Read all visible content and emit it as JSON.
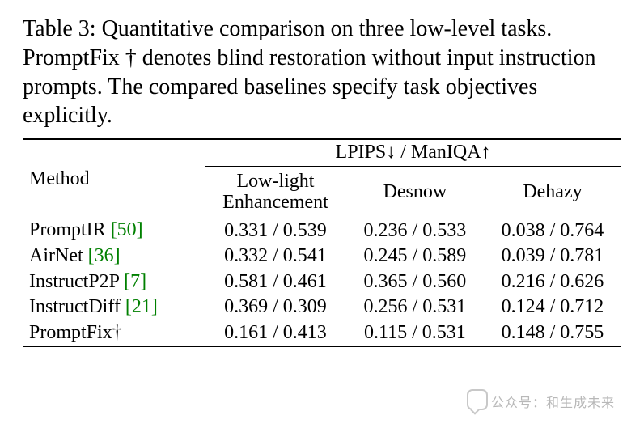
{
  "caption": "Table 3: Quantitative comparison on three low-level tasks. PromptFix † denotes blind restoration without input instruction prompts. The compared baselines specify task objectives explicitly.",
  "header": {
    "method_label": "Method",
    "metric_header": "LPIPS↓ / ManIQA↑",
    "columns": [
      {
        "line1": "Low-light",
        "line2": "Enhancement"
      },
      {
        "line1": "Desnow",
        "line2": ""
      },
      {
        "line1": "Dehazy",
        "line2": ""
      }
    ]
  },
  "groups": [
    {
      "rows": [
        {
          "method": "PromptIR",
          "cite": "[50]",
          "vals": [
            "0.331 / 0.539",
            "0.236 / 0.533",
            "0.038 / 0.764"
          ]
        },
        {
          "method": "AirNet",
          "cite": "[36]",
          "vals": [
            "0.332 / 0.541",
            "0.245 / 0.589",
            "0.039 / 0.781"
          ]
        }
      ]
    },
    {
      "rows": [
        {
          "method": "InstructP2P",
          "cite": "[7]",
          "vals": [
            "0.581 / 0.461",
            "0.365 / 0.560",
            "0.216 / 0.626"
          ]
        },
        {
          "method": "InstructDiff",
          "cite": "[21]",
          "vals": [
            "0.369 / 0.309",
            "0.256 / 0.531",
            "0.124 / 0.712"
          ]
        }
      ]
    },
    {
      "rows": [
        {
          "method": "PromptFix†",
          "cite": "",
          "vals": [
            "0.161 / 0.413",
            "0.115 / 0.531",
            "0.148 / 0.755"
          ]
        }
      ]
    }
  ],
  "colors": {
    "cite": "#008000",
    "text": "#000000",
    "background": "#ffffff",
    "watermark": "#b8b8b8"
  },
  "fontsize": {
    "caption": 28,
    "table": 24
  },
  "watermark": "公众号：和生成未来"
}
